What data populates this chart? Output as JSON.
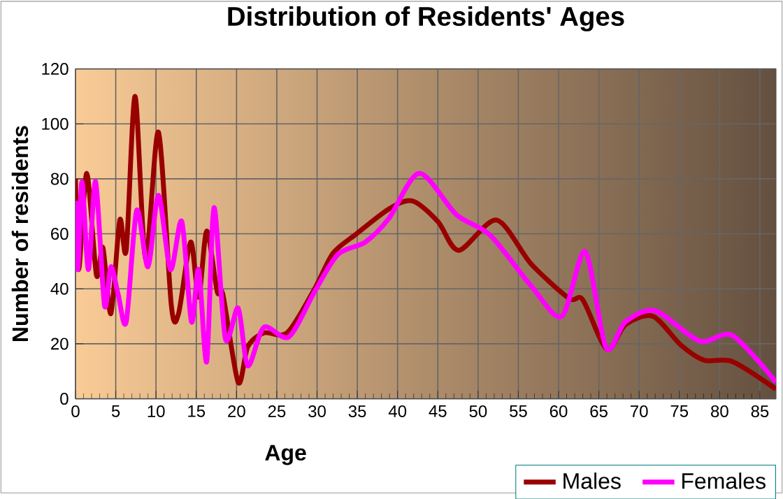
{
  "chart_data": {
    "type": "line",
    "title": "Distribution of Residents' Ages",
    "xlabel": "Age",
    "ylabel": "Number of residents",
    "xlim": [
      0,
      87
    ],
    "xticks": [
      0,
      5,
      10,
      15,
      20,
      25,
      30,
      35,
      40,
      45,
      50,
      55,
      60,
      65,
      70,
      75,
      80,
      85
    ],
    "ylim": [
      0,
      120
    ],
    "yticks": [
      0,
      20,
      40,
      60,
      80,
      100,
      120
    ],
    "grid": true,
    "legend": "bottom right",
    "series": [
      {
        "name": "Males",
        "color": "#990000",
        "x": [
          0,
          0.4,
          1.4,
          2.6,
          3.4,
          4.4,
          5.5,
          6.3,
          7.4,
          8.7,
          10.3,
          11.9,
          12.8,
          14.3,
          15.3,
          16.3,
          17.6,
          18.3,
          20.2,
          21.4,
          23.4,
          26.3,
          29.7,
          32,
          34.9,
          38.9,
          41.8,
          45,
          47.6,
          52.3,
          56.6,
          61.3,
          63,
          66,
          68.3,
          71.7,
          75.2,
          78.1,
          81.6,
          87
        ],
        "values": [
          80,
          47,
          82,
          45,
          55,
          31,
          65,
          54,
          110,
          51,
          97,
          34,
          31,
          57,
          37,
          61,
          39,
          38,
          6,
          19,
          24,
          24,
          40,
          53,
          60,
          69,
          72,
          64.5,
          54,
          65,
          49,
          36.5,
          36,
          18,
          27,
          30,
          19.5,
          14,
          13.5,
          3.5
        ]
      },
      {
        "name": "Females",
        "color": "#ff00ff",
        "x": [
          0,
          0.3,
          0.8,
          1.6,
          2.5,
          3.6,
          4.4,
          5.3,
          6.3,
          7.6,
          9,
          10.3,
          11.8,
          13.2,
          14.4,
          15.3,
          16.3,
          17.2,
          18.6,
          20.2,
          21.4,
          23.4,
          26.5,
          29.7,
          32.6,
          36,
          38.9,
          42.7,
          47.3,
          51.5,
          56.6,
          60.4,
          63.3,
          65.9,
          68.3,
          72,
          77.5,
          81.6,
          87
        ],
        "values": [
          72,
          47,
          79,
          47,
          79,
          34,
          48,
          38,
          28,
          68.5,
          48,
          74,
          47,
          64.5,
          28,
          47,
          13.5,
          69.5,
          22,
          33,
          12,
          26,
          22.5,
          39,
          52.5,
          57,
          65.5,
          82,
          67,
          59.5,
          41,
          30,
          53.5,
          18.5,
          28,
          32,
          21,
          23,
          6
        ]
      }
    ]
  }
}
